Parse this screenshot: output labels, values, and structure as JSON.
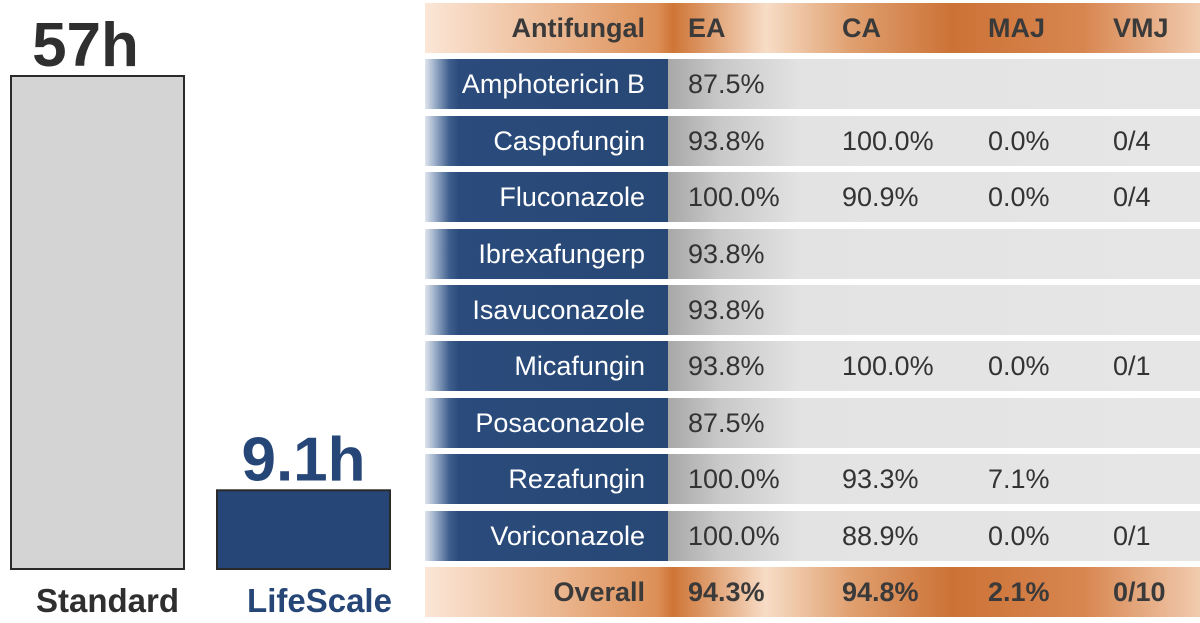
{
  "chart_data": {
    "type": "bar",
    "categories": [
      "Standard",
      "LifeScale"
    ],
    "values": [
      57,
      9.1
    ],
    "value_labels": [
      "57h",
      "9.1h"
    ],
    "colors": [
      "#d4d4d4",
      "#264677"
    ],
    "label_colors": [
      "#2f2f2f",
      "#264677"
    ],
    "title": "",
    "xlabel": "",
    "ylabel": "",
    "ylim": [
      0,
      57
    ],
    "grid": false
  },
  "table": {
    "headers": [
      "Antifungal",
      "EA",
      "CA",
      "MAJ",
      "VMJ"
    ],
    "rows": [
      {
        "name": "Amphotericin B",
        "ea": "87.5%",
        "ca": "",
        "maj": "",
        "vmj": ""
      },
      {
        "name": "Caspofungin",
        "ea": "93.8%",
        "ca": "100.0%",
        "maj": "0.0%",
        "vmj": "0/4"
      },
      {
        "name": "Fluconazole",
        "ea": "100.0%",
        "ca": "90.9%",
        "maj": "0.0%",
        "vmj": "0/4"
      },
      {
        "name": "Ibrexafungerp",
        "ea": "93.8%",
        "ca": "",
        "maj": "",
        "vmj": ""
      },
      {
        "name": "Isavuconazole",
        "ea": "93.8%",
        "ca": "",
        "maj": "",
        "vmj": ""
      },
      {
        "name": "Micafungin",
        "ea": "93.8%",
        "ca": "100.0%",
        "maj": "0.0%",
        "vmj": "0/1"
      },
      {
        "name": "Posaconazole",
        "ea": "87.5%",
        "ca": "",
        "maj": "",
        "vmj": ""
      },
      {
        "name": "Rezafungin",
        "ea": "100.0%",
        "ca": "93.3%",
        "maj": "7.1%",
        "vmj": ""
      },
      {
        "name": "Voriconazole",
        "ea": "100.0%",
        "ca": "88.9%",
        "maj": "0.0%",
        "vmj": "0/1"
      }
    ],
    "footer": {
      "name": "Overall",
      "ea": "94.3%",
      "ca": "94.8%",
      "maj": "2.1%",
      "vmj": "0/10"
    }
  }
}
